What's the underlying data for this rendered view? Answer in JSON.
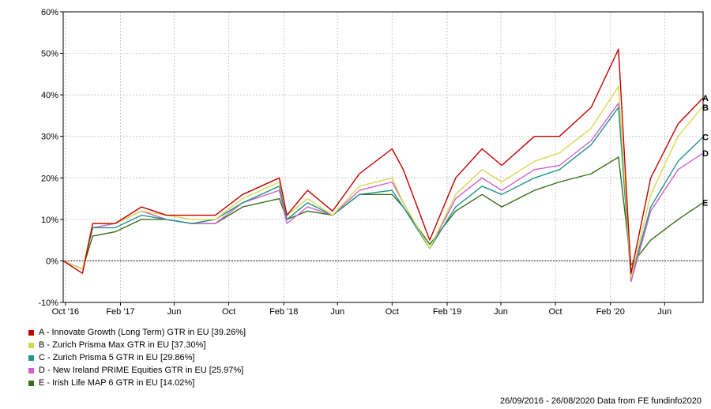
{
  "chart_data": {
    "type": "line",
    "title": "",
    "xlabel": "",
    "ylabel": "",
    "ylim": [
      -10,
      60
    ],
    "y_ticks": [
      {
        "value": -10,
        "label": "-10%"
      },
      {
        "value": 0,
        "label": "0%"
      },
      {
        "value": 10,
        "label": "10%"
      },
      {
        "value": 20,
        "label": "20%"
      },
      {
        "value": 30,
        "label": "30%"
      },
      {
        "value": 40,
        "label": "40%"
      },
      {
        "value": 50,
        "label": "50%"
      },
      {
        "value": 60,
        "label": "60%"
      }
    ],
    "xlim": [
      "2016-09-26",
      "2020-08-26"
    ],
    "x_ticks": [
      {
        "date": "2016-10-01",
        "label": "Oct '16"
      },
      {
        "date": "2017-02-01",
        "label": "Feb '17"
      },
      {
        "date": "2017-06-01",
        "label": "Jun"
      },
      {
        "date": "2017-10-01",
        "label": "Oct"
      },
      {
        "date": "2018-02-01",
        "label": "Feb '18"
      },
      {
        "date": "2018-06-01",
        "label": "Jun"
      },
      {
        "date": "2018-10-01",
        "label": "Oct"
      },
      {
        "date": "2019-02-01",
        "label": "Feb '19"
      },
      {
        "date": "2019-06-01",
        "label": "Jun"
      },
      {
        "date": "2019-10-01",
        "label": "Oct"
      },
      {
        "date": "2020-02-01",
        "label": "Feb '20"
      },
      {
        "date": "2020-06-01",
        "label": "Jun"
      }
    ],
    "grid": true,
    "zero_line": true,
    "legend_position": "bottom-left",
    "x": [
      "2016-09-26",
      "2016-11-08",
      "2016-12-01",
      "2017-01-20",
      "2017-03-20",
      "2017-05-15",
      "2017-07-10",
      "2017-09-01",
      "2017-11-01",
      "2018-01-22",
      "2018-02-08",
      "2018-03-26",
      "2018-05-21",
      "2018-07-20",
      "2018-10-01",
      "2018-10-26",
      "2018-12-24",
      "2019-02-20",
      "2019-04-20",
      "2019-06-03",
      "2019-08-15",
      "2019-10-10",
      "2019-12-20",
      "2020-02-19",
      "2020-03-18",
      "2020-05-01",
      "2020-07-01",
      "2020-08-26"
    ],
    "series": [
      {
        "name": "A - Innovate Growth (Long Term) GTR in EU [39.26%]",
        "end_label": "A",
        "color": "#c00000",
        "values": [
          0,
          -3,
          9,
          9,
          13,
          11,
          11,
          11,
          16,
          20,
          11,
          17,
          12,
          21,
          27,
          22,
          5,
          20,
          27,
          23,
          30,
          30,
          37,
          51,
          -3,
          20,
          33,
          39.26
        ]
      },
      {
        "name": "B - Zurich Prisma Max GTR in EU [37.30%]",
        "end_label": "B",
        "color": "#d8d850",
        "values": [
          0,
          -2,
          9,
          9,
          12,
          11,
          10,
          10,
          15,
          19,
          11,
          15,
          11,
          18,
          20,
          14,
          3,
          16,
          22,
          19,
          24,
          26,
          32,
          42,
          -4,
          16,
          30,
          37.3
        ]
      },
      {
        "name": "C - Zurich Prisma 5 GTR in EU [29.86%]",
        "end_label": "C",
        "color": "#20948a",
        "values": [
          0,
          -2,
          8,
          8,
          11,
          10,
          9,
          10,
          14,
          18,
          10,
          14,
          11,
          16,
          17,
          13,
          3,
          13,
          18,
          16,
          20,
          22,
          28,
          37,
          -4,
          13,
          24,
          29.86
        ]
      },
      {
        "name": "D - New Ireland PRIME Equities GTR in EU [25.97%]",
        "end_label": "D",
        "color": "#d060d0",
        "values": [
          0,
          -2,
          8,
          9,
          12,
          10,
          9,
          9,
          14,
          17,
          9,
          13,
          11,
          17,
          19,
          14,
          3,
          15,
          20,
          17,
          22,
          23,
          29,
          38,
          -5,
          12,
          22,
          25.97
        ]
      },
      {
        "name": "E - Irish Life MAP 6 GTR in EU [14.02%]",
        "end_label": "E",
        "color": "#3a6e1c",
        "values": [
          0,
          -2,
          6,
          7,
          10,
          10,
          9,
          9,
          13,
          15,
          10,
          12,
          11,
          16,
          16,
          13,
          4,
          12,
          16,
          13,
          17,
          19,
          21,
          25,
          -1,
          5,
          10,
          14.02
        ]
      }
    ]
  },
  "footer": {
    "text": "26/09/2016 - 26/08/2020 Data from FE fundinfo2020"
  }
}
